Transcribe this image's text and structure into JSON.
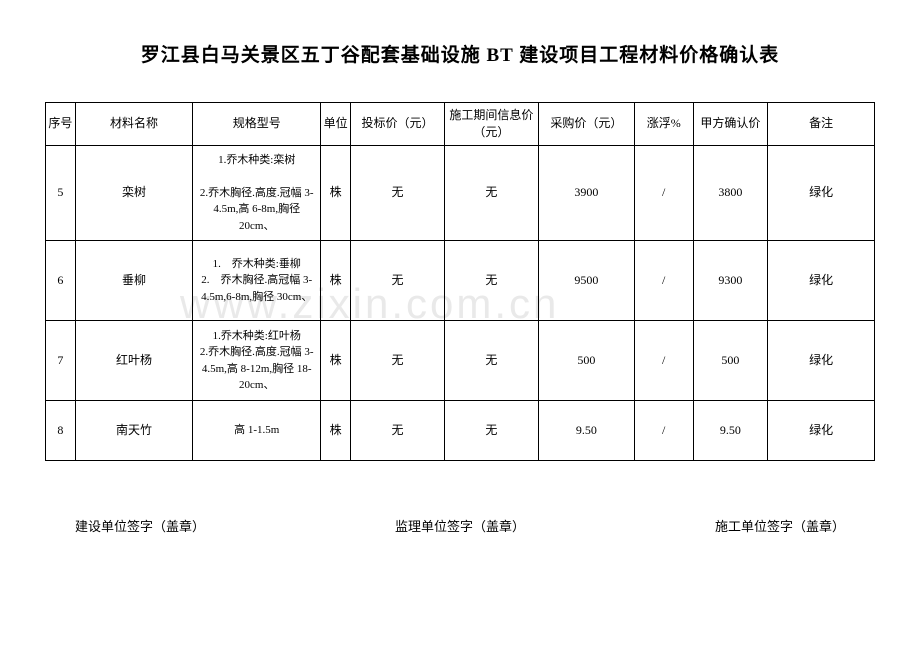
{
  "title": "罗江县白马关景区五丁谷配套基础设施 BT 建设项目工程材料价格确认表",
  "headers": {
    "seq": "序号",
    "name": "材料名称",
    "spec": "规格型号",
    "unit": "单位",
    "bid": "投标价（元）",
    "info": "施工期间信息价（元）",
    "purchase": "采购价（元）",
    "float": "涨浮%",
    "confirm": "甲方确认价",
    "remark": "备注"
  },
  "rows": [
    {
      "seq": "5",
      "name": "栾树",
      "spec": "1.乔木种类:栾树\n\n2.乔木胸径.高度.冠幅 3-4.5m,高 6-8m,胸径 20cm、",
      "unit": "株",
      "bid": "无",
      "info": "无",
      "purchase": "3900",
      "float": "/",
      "confirm": "3800",
      "remark": "绿化"
    },
    {
      "seq": "6",
      "name": "垂柳",
      "spec": "1.　乔木种类:垂柳\n2.　乔木胸径.高冠幅 3-4.5m,6-8m,胸径 30cm、",
      "unit": "株",
      "bid": "无",
      "info": "无",
      "purchase": "9500",
      "float": "/",
      "confirm": "9300",
      "remark": "绿化"
    },
    {
      "seq": "7",
      "name": "红叶杨",
      "spec": "1.乔木种类:红叶杨\n2.乔木胸径.高度.冠幅 3-4.5m,高 8-12m,胸径 18-20cm、",
      "unit": "株",
      "bid": "无",
      "info": "无",
      "purchase": "500",
      "float": "/",
      "confirm": "500",
      "remark": "绿化"
    },
    {
      "seq": "8",
      "name": "南天竹",
      "spec": "高 1-1.5m",
      "unit": "株",
      "bid": "无",
      "info": "无",
      "purchase": "9.50",
      "float": "/",
      "confirm": "9.50",
      "remark": "绿化"
    }
  ],
  "signatures": {
    "build": "建设单位签字（盖章）",
    "supervise": "监理单位签字（盖章）",
    "construct": "施工单位签字（盖章）"
  },
  "watermark": "www.zixin.com.cn"
}
